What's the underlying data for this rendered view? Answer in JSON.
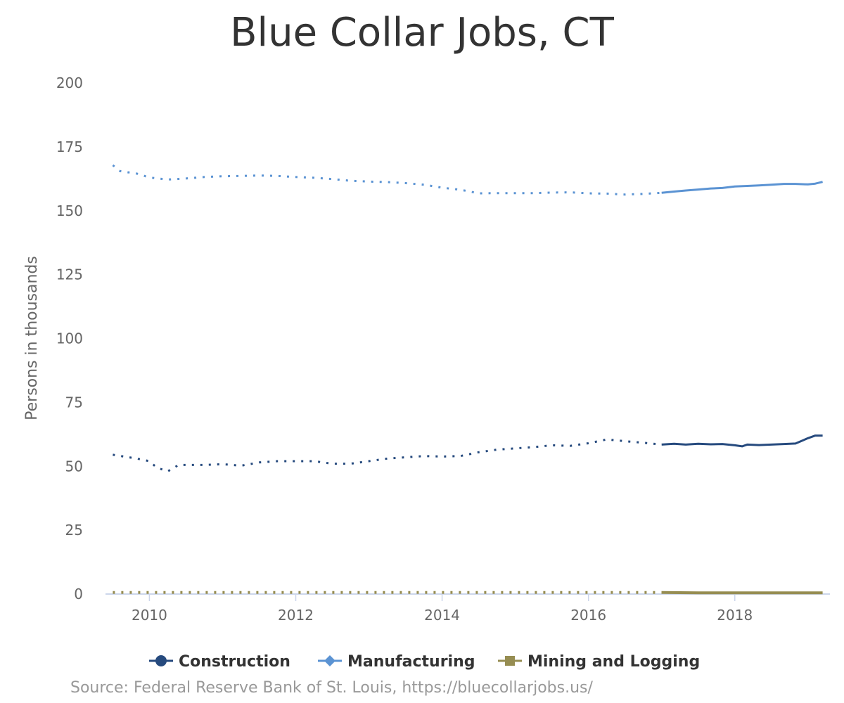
{
  "chart_data": {
    "type": "line",
    "title": "Blue Collar Jobs, CT",
    "ylabel": "Persons in thousands",
    "xlabel": "",
    "source": "Source: Federal Reserve Bank of St. Louis, https://bluecollarjobs.us/",
    "xlim": [
      2009.4,
      2019.3
    ],
    "ylim": [
      0,
      200
    ],
    "y_ticks": [
      0,
      25,
      50,
      75,
      100,
      125,
      150,
      175,
      200
    ],
    "x_ticks": [
      2010,
      2012,
      2014,
      2016,
      2018
    ],
    "grid": false,
    "legend_position": "bottom",
    "solid_from": 2017.0,
    "series": [
      {
        "name": "Construction",
        "color": "#264a7e",
        "marker": "circle",
        "points": [
          [
            2009.5,
            54.5
          ],
          [
            2009.83,
            53.0
          ],
          [
            2010.0,
            52.0
          ],
          [
            2010.1,
            49.5
          ],
          [
            2010.25,
            48.0
          ],
          [
            2010.4,
            50.5
          ],
          [
            2010.75,
            50.5
          ],
          [
            2011.0,
            50.8
          ],
          [
            2011.25,
            50.2
          ],
          [
            2011.5,
            51.5
          ],
          [
            2011.75,
            52.0
          ],
          [
            2012.0,
            52.0
          ],
          [
            2012.25,
            52.0
          ],
          [
            2012.5,
            51.0
          ],
          [
            2012.75,
            51.0
          ],
          [
            2013.0,
            52.0
          ],
          [
            2013.25,
            53.0
          ],
          [
            2013.5,
            53.5
          ],
          [
            2013.75,
            54.0
          ],
          [
            2014.0,
            53.8
          ],
          [
            2014.25,
            54.0
          ],
          [
            2014.5,
            55.5
          ],
          [
            2014.75,
            56.5
          ],
          [
            2015.0,
            57.0
          ],
          [
            2015.25,
            57.5
          ],
          [
            2015.5,
            58.2
          ],
          [
            2015.75,
            58.0
          ],
          [
            2016.0,
            59.0
          ],
          [
            2016.25,
            60.5
          ],
          [
            2016.5,
            59.8
          ],
          [
            2016.75,
            59.2
          ],
          [
            2017.0,
            58.5
          ],
          [
            2017.17,
            58.8
          ],
          [
            2017.33,
            58.5
          ],
          [
            2017.5,
            58.8
          ],
          [
            2017.67,
            58.6
          ],
          [
            2017.83,
            58.7
          ],
          [
            2018.0,
            58.2
          ],
          [
            2018.1,
            57.8
          ],
          [
            2018.17,
            58.5
          ],
          [
            2018.33,
            58.3
          ],
          [
            2018.5,
            58.5
          ],
          [
            2018.67,
            58.7
          ],
          [
            2018.83,
            58.9
          ],
          [
            2019.0,
            61.0
          ],
          [
            2019.1,
            62.0
          ],
          [
            2019.2,
            62.0
          ]
        ]
      },
      {
        "name": "Manufacturing",
        "color": "#5b93d3",
        "marker": "diamond",
        "points": [
          [
            2009.5,
            167.8
          ],
          [
            2009.6,
            165.5
          ],
          [
            2009.83,
            164.5
          ],
          [
            2010.0,
            163.0
          ],
          [
            2010.25,
            162.2
          ],
          [
            2010.5,
            162.6
          ],
          [
            2010.75,
            163.2
          ],
          [
            2011.0,
            163.5
          ],
          [
            2011.25,
            163.6
          ],
          [
            2011.5,
            163.8
          ],
          [
            2011.75,
            163.6
          ],
          [
            2012.0,
            163.2
          ],
          [
            2012.25,
            162.9
          ],
          [
            2012.5,
            162.4
          ],
          [
            2012.75,
            161.7
          ],
          [
            2013.0,
            161.4
          ],
          [
            2013.25,
            161.2
          ],
          [
            2013.5,
            160.8
          ],
          [
            2013.75,
            160.2
          ],
          [
            2014.0,
            159.0
          ],
          [
            2014.25,
            158.2
          ],
          [
            2014.5,
            156.8
          ],
          [
            2014.75,
            156.9
          ],
          [
            2015.0,
            156.9
          ],
          [
            2015.25,
            156.9
          ],
          [
            2015.5,
            157.1
          ],
          [
            2015.75,
            157.2
          ],
          [
            2016.0,
            156.8
          ],
          [
            2016.25,
            156.7
          ],
          [
            2016.5,
            156.3
          ],
          [
            2016.75,
            156.6
          ],
          [
            2017.0,
            157.0
          ],
          [
            2017.17,
            157.5
          ],
          [
            2017.33,
            157.9
          ],
          [
            2017.5,
            158.3
          ],
          [
            2017.67,
            158.7
          ],
          [
            2017.83,
            158.9
          ],
          [
            2018.0,
            159.5
          ],
          [
            2018.17,
            159.7
          ],
          [
            2018.33,
            159.9
          ],
          [
            2018.5,
            160.2
          ],
          [
            2018.67,
            160.5
          ],
          [
            2018.83,
            160.5
          ],
          [
            2019.0,
            160.3
          ],
          [
            2019.1,
            160.6
          ],
          [
            2019.2,
            161.3
          ]
        ]
      },
      {
        "name": "Mining and Logging",
        "color": "#968d52",
        "marker": "square",
        "points": [
          [
            2009.5,
            0.6
          ],
          [
            2010.5,
            0.6
          ],
          [
            2011.5,
            0.6
          ],
          [
            2012.5,
            0.6
          ],
          [
            2013.5,
            0.6
          ],
          [
            2014.5,
            0.6
          ],
          [
            2015.5,
            0.6
          ],
          [
            2016.5,
            0.6
          ],
          [
            2017.0,
            0.6
          ],
          [
            2017.5,
            0.5
          ],
          [
            2018.0,
            0.5
          ],
          [
            2018.5,
            0.5
          ],
          [
            2019.0,
            0.5
          ],
          [
            2019.2,
            0.5
          ]
        ]
      }
    ]
  }
}
